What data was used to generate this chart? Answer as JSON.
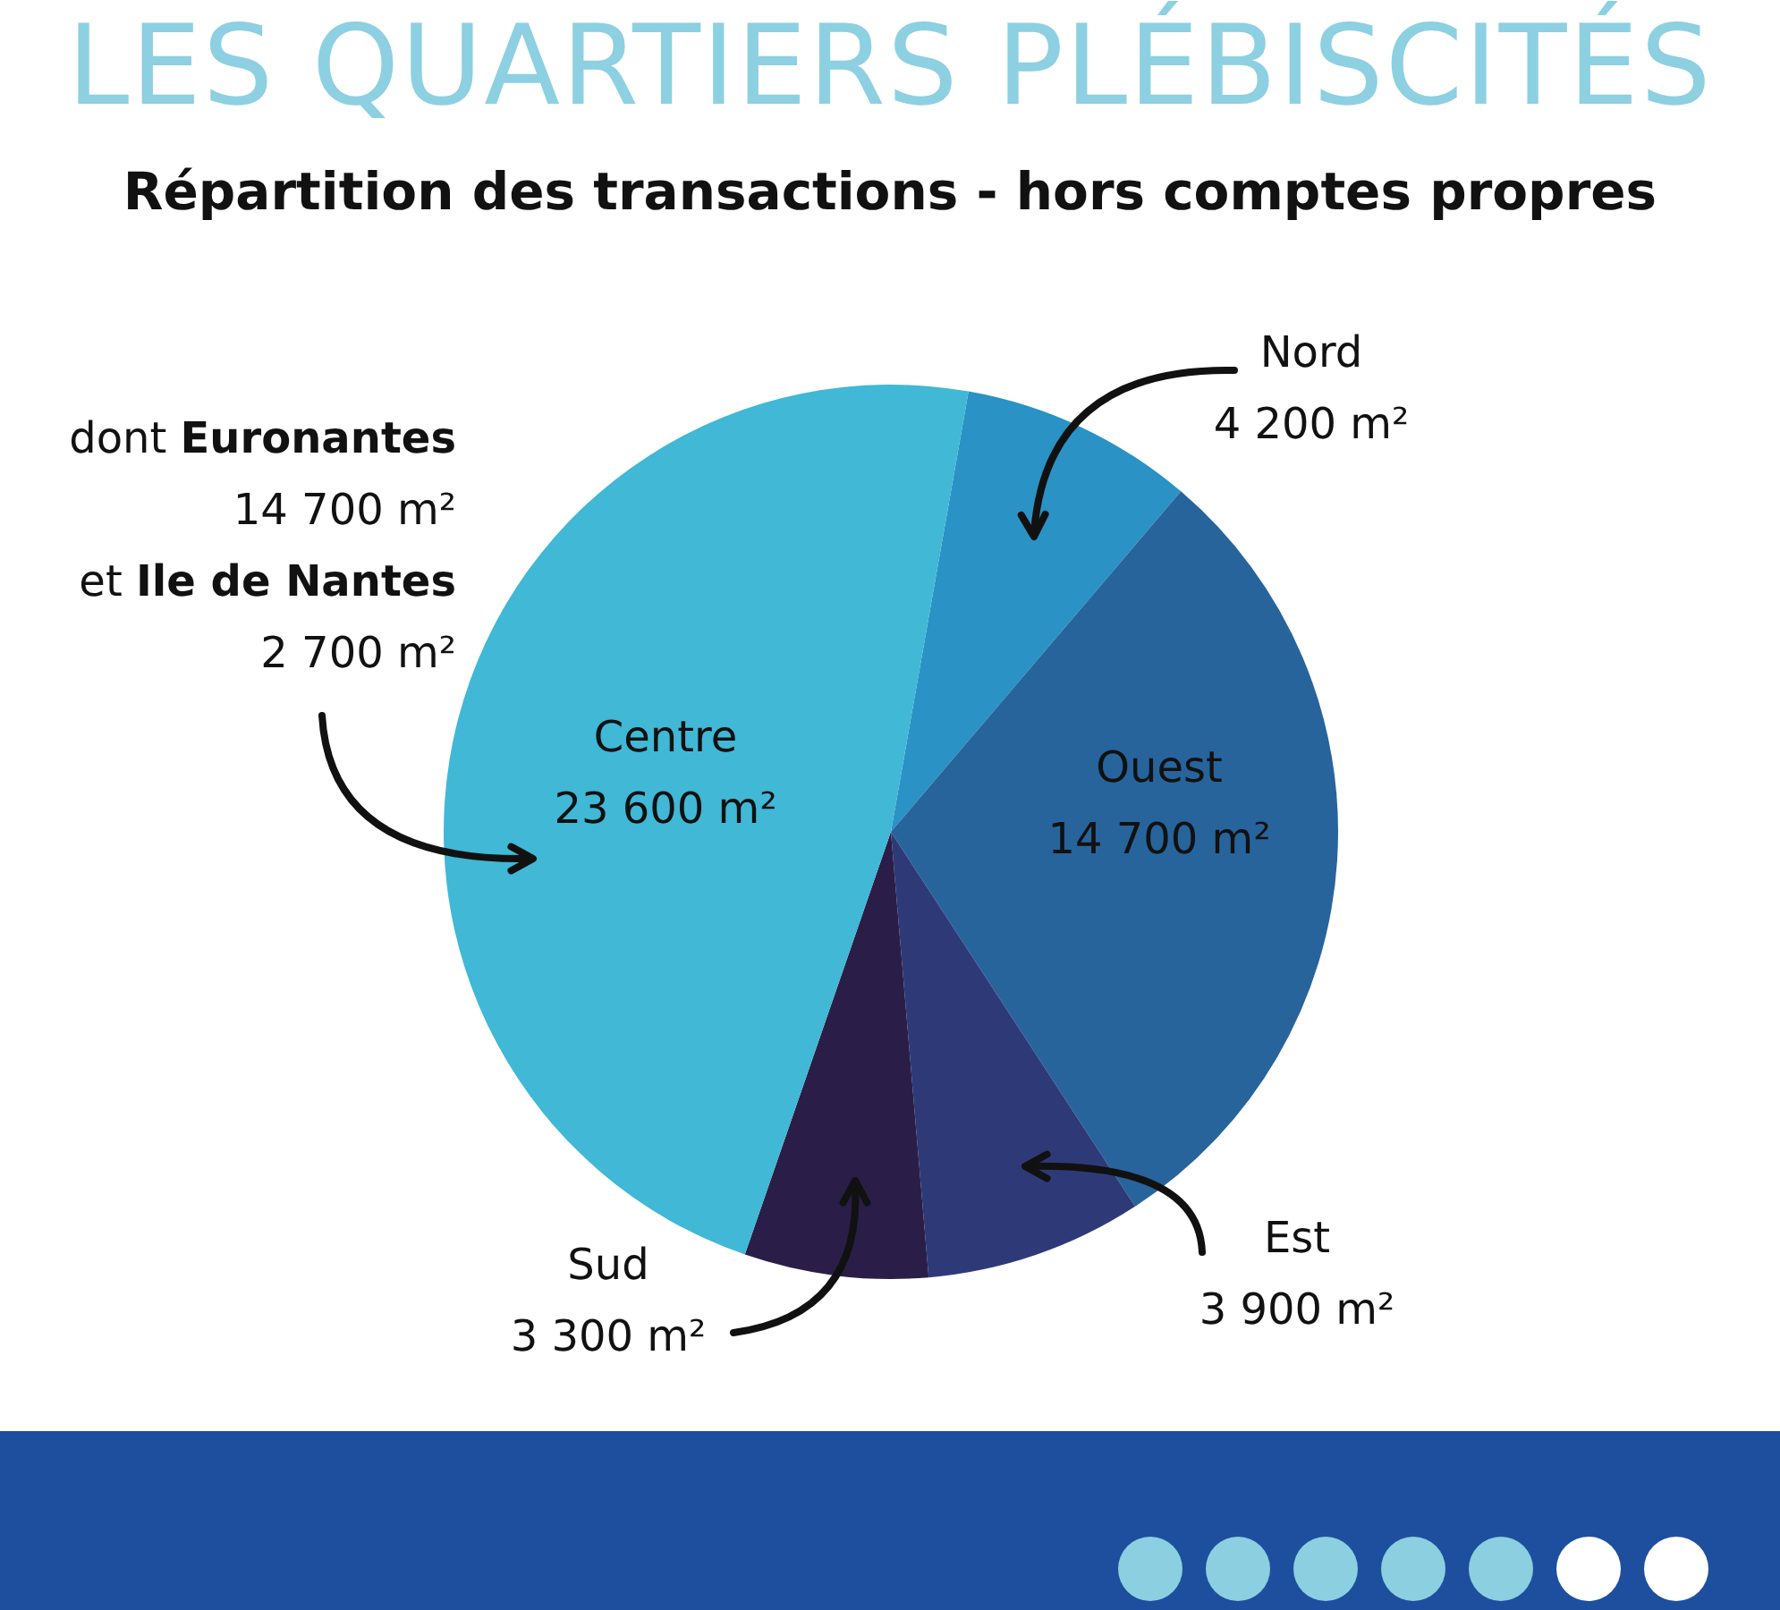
{
  "chart_data": {
    "type": "pie",
    "title": "LES QUARTIERS PLÉBISCITÉS",
    "subtitle": "Répartition des transactions - hors comptes propres",
    "categories": [
      "Nord",
      "Ouest",
      "Est",
      "Sud",
      "Centre"
    ],
    "values": [
      4200,
      14700,
      3900,
      3300,
      23600
    ],
    "value_labels": [
      "4 200 m²",
      "14 700 m²",
      "3 900 m²",
      "3 300 m²",
      "23 600 m²"
    ],
    "colors": [
      "#2a92c4",
      "#27649c",
      "#2e3a78",
      "#2a1e48",
      "#40b8d6"
    ],
    "annotations": [
      "dont Euronantes",
      "14 700 m²",
      "et Ile de Nantes",
      "2 700 m²"
    ],
    "legend": false
  }
}
